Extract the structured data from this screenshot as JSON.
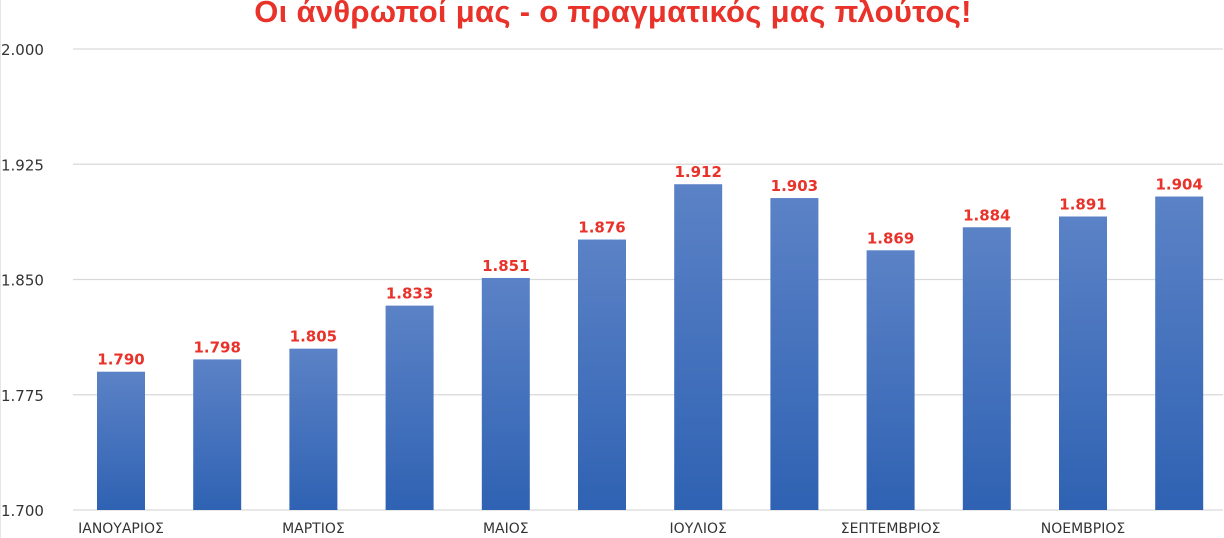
{
  "chart_data": {
    "type": "bar",
    "title": "Οι άνθρωποί μας - ο πραγματικός μας πλούτος!",
    "categories": [
      "ΙΑΝΟΥΑΡΙΟΣ",
      "",
      "ΜΑΡΤΙΟΣ",
      "",
      "ΜΑΙΟΣ",
      "",
      "ΙΟΥΛΙΟΣ",
      "",
      "ΣΕΠΤΕΜΒΡΙΟΣ",
      "",
      "ΝΟΕΜΒΡΙΟΣ",
      ""
    ],
    "values": [
      1790,
      1798,
      1805,
      1833,
      1851,
      1876,
      1912,
      1903,
      1869,
      1884,
      1891,
      1904
    ],
    "value_labels": [
      "1.790",
      "1.798",
      "1.805",
      "1.833",
      "1.851",
      "1.876",
      "1.912",
      "1.903",
      "1.869",
      "1.884",
      "1.891",
      "1.904"
    ],
    "ylim": [
      1700,
      2000
    ],
    "yticks": [
      1700,
      1775,
      1850,
      1925,
      2000
    ],
    "ytick_labels": [
      "1.700",
      "1.775",
      "1.850",
      "1.925",
      "2.000"
    ],
    "xlabel": "",
    "ylabel": "",
    "grid": true,
    "legend": "none",
    "colors": {
      "bar_top": "#5b82c6",
      "bar_bottom": "#2f62b3",
      "data_label": "#e8322a",
      "title": "#e8322a",
      "grid": "#d9d9d9"
    }
  }
}
